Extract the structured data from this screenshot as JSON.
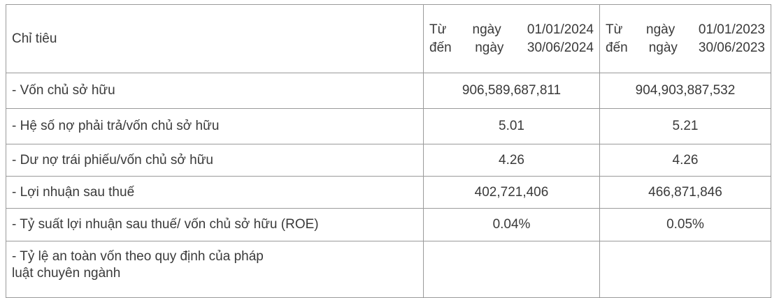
{
  "table": {
    "headers": [
      "Chỉ tiêu",
      "Từ ngày 01/01/2024 đến ngày 30/06/2024",
      "Từ ngày 01/01/2023 đến ngày 30/06/2023"
    ],
    "header_lines": {
      "col2": [
        "Từ ngày 01/01/2024",
        "đến ngày 30/06/2024"
      ],
      "col3": [
        "Từ ngày 01/01/2023",
        "đến ngày 30/06/2023"
      ]
    },
    "rows": [
      {
        "label": "- Vốn chủ sở hữu",
        "v2024": "906,589,687,811",
        "v2023": "904,903,887,532"
      },
      {
        "label": "- Hệ số nợ phải trả/vốn chủ sở hữu",
        "v2024": "5.01",
        "v2023": "5.21"
      },
      {
        "label": "- Dư nợ trái phiếu/vốn chủ sở hữu",
        "v2024": "4.26",
        "v2023": "4.26"
      },
      {
        "label": "- Lợi nhuận sau thuế",
        "v2024": "402,721,406",
        "v2023": "466,871,846"
      },
      {
        "label": "- Tỷ suất lợi nhuận sau thuế/ vốn chủ sở hữu (ROE)",
        "v2024": "0.04%",
        "v2023": "0.05%"
      },
      {
        "label": "- Tỷ lệ an toàn vốn theo quy định của pháp luật chuyên ngành",
        "v2024": "",
        "v2023": ""
      }
    ]
  }
}
